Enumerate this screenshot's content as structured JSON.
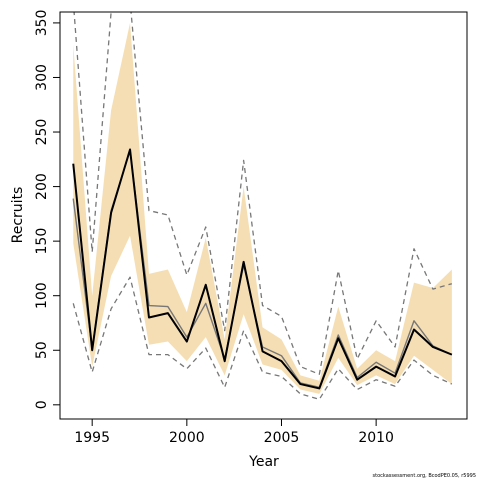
{
  "chart_data": {
    "type": "line",
    "xlabel": "Year",
    "ylabel": "Recruits",
    "xlim": [
      1993.3,
      2014.8
    ],
    "ylim": [
      -13,
      360
    ],
    "x_ticks": [
      1995,
      2000,
      2005,
      2010
    ],
    "y_ticks": [
      0,
      50,
      100,
      150,
      200,
      250,
      300,
      350
    ],
    "x": [
      1994,
      1995,
      1996,
      1997,
      1998,
      1999,
      2000,
      2001,
      2002,
      2003,
      2004,
      2005,
      2006,
      2007,
      2008,
      2009,
      2010,
      2011,
      2012,
      2013,
      2014
    ],
    "grid": false,
    "legend": "none",
    "series": [
      {
        "role": "estimate",
        "style": "solid",
        "color": "#000000",
        "values": [
          221,
          50,
          176,
          234,
          80,
          84,
          58,
          110,
          40,
          131,
          49,
          40,
          19,
          15,
          61,
          23,
          35,
          26,
          69,
          53,
          46
        ]
      },
      {
        "role": "comparison-estimate",
        "style": "solid",
        "color": "#777777",
        "values": [
          189,
          51,
          178,
          233,
          91,
          90,
          62,
          93,
          42,
          128,
          53,
          45,
          20,
          16,
          64,
          25,
          39,
          29,
          77,
          54,
          46
        ]
      },
      {
        "role": "upper-interval",
        "style": "dashed",
        "color": "#777777",
        "values": [
          370,
          140,
          360,
          370,
          178,
          174,
          119,
          163,
          68,
          224,
          91,
          81,
          35,
          28,
          123,
          42,
          77,
          53,
          143,
          106,
          111
        ]
      },
      {
        "role": "lower-interval",
        "style": "dashed",
        "color": "#777777",
        "values": [
          93,
          30,
          88,
          117,
          46,
          46,
          33,
          52,
          16,
          68,
          30,
          26,
          10,
          5,
          33,
          14,
          23,
          17,
          41,
          27,
          19
        ]
      }
    ],
    "band": {
      "color": "#f5deb3",
      "upper": [
        330,
        100,
        270,
        350,
        120,
        124,
        85,
        153,
        60,
        200,
        71,
        60,
        27,
        22,
        90,
        33,
        50,
        40,
        112,
        107,
        124
      ],
      "lower": [
        148,
        35,
        118,
        155,
        55,
        58,
        40,
        62,
        27,
        83,
        37,
        32,
        14,
        10,
        43,
        18,
        27,
        19,
        45,
        32,
        19
      ]
    },
    "footer": "stockassessment.org, BcodPE0.05, r5995"
  }
}
